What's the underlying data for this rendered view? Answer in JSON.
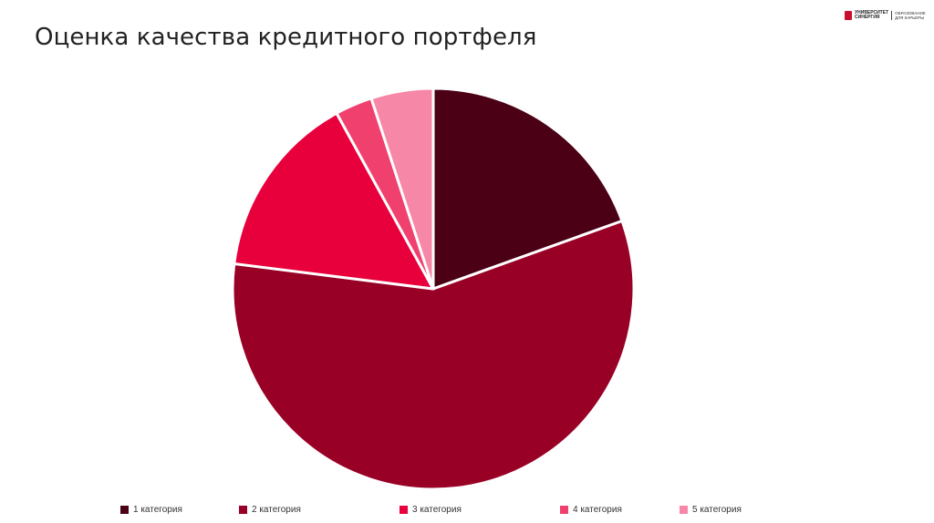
{
  "title": "Оценка качества кредитного портфеля",
  "logo": {
    "line1": "УНИВЕРСИТЕТ",
    "line2": "СИНЕРГИЯ",
    "sub1": "ОБРАЗОВАНИЕ",
    "sub2": "ДЛЯ КАРЬЕРЫ"
  },
  "chart_data": {
    "type": "pie",
    "title": "",
    "start_angle_deg": 0,
    "direction": "clockwise",
    "categories": [
      "1 категория",
      "2 категория",
      "3 категория",
      "4 категория",
      "5 категория"
    ],
    "values": [
      19.5,
      57.5,
      15,
      3,
      5
    ],
    "colors": [
      "#4b0016",
      "#990026",
      "#e8003c",
      "#f0406e",
      "#f787a6"
    ],
    "legend_position": "bottom"
  }
}
